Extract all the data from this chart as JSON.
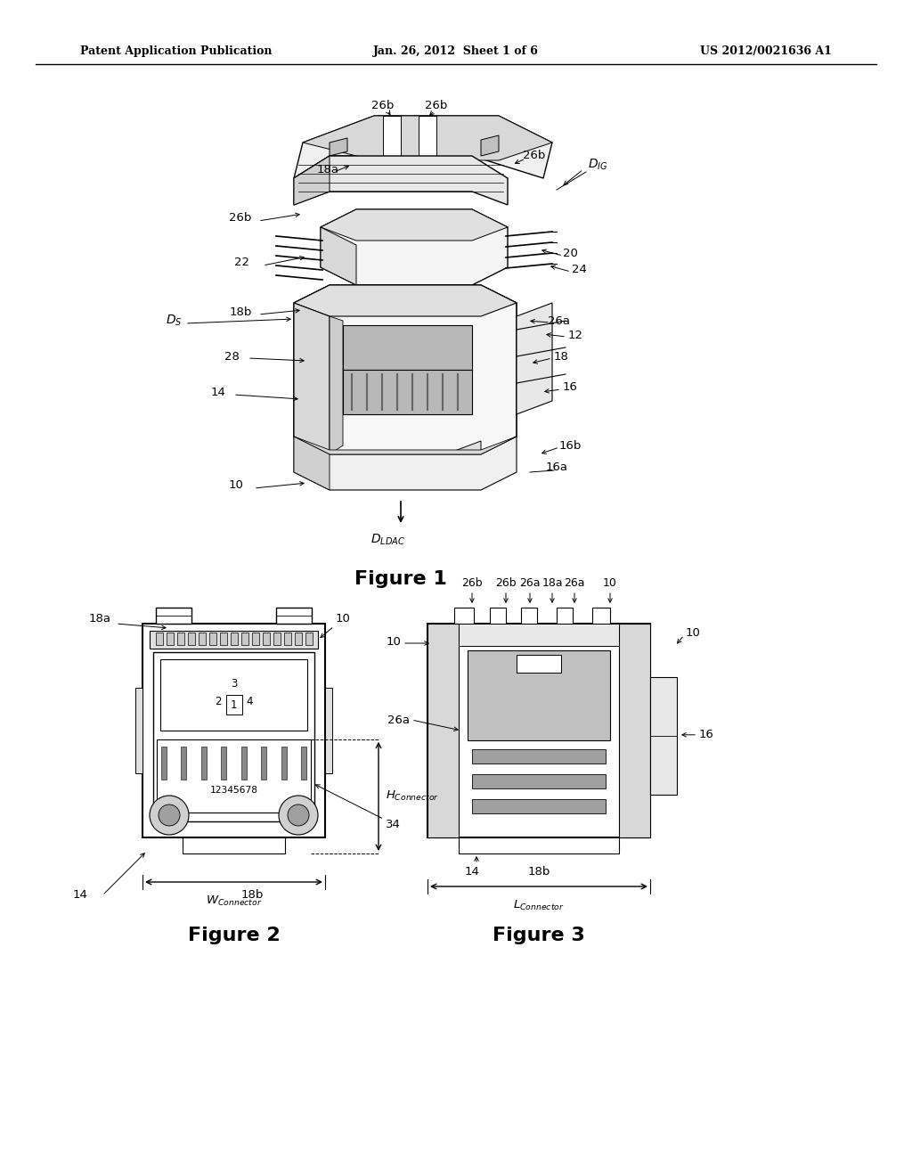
{
  "bg_color": "#ffffff",
  "header_left": "Patent Application Publication",
  "header_center": "Jan. 26, 2012  Sheet 1 of 6",
  "header_right": "US 2012/0021636 A1",
  "figure1_title": "Figure 1",
  "figure2_title": "Figure 2",
  "figure3_title": "Figure 3",
  "line_color": "#000000",
  "gray_light": "#e8e8e8",
  "gray_mid": "#c8c8c8",
  "gray_dark": "#a0a0a0"
}
